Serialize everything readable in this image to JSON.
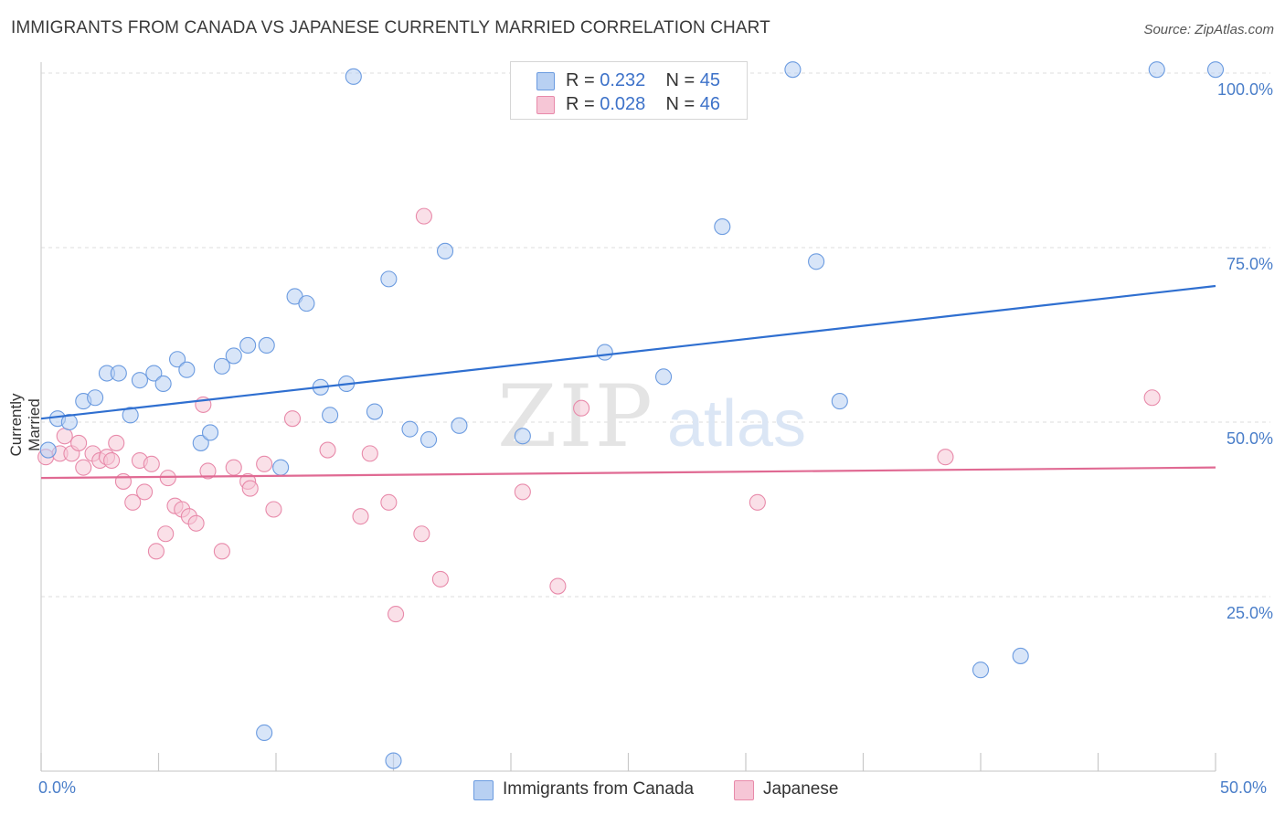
{
  "header": {
    "title": "IMMIGRANTS FROM CANADA VS JAPANESE CURRENTLY MARRIED CORRELATION CHART",
    "source": "Source: ZipAtlas.com"
  },
  "watermark": {
    "zip": "ZIP",
    "atlas": "atlas"
  },
  "legend": {
    "rows": [
      {
        "r_label": "R = ",
        "r_value": "0.232",
        "n_label": "N = ",
        "n_value": "45"
      },
      {
        "r_label": "R = ",
        "r_value": "0.028",
        "n_label": "N = ",
        "n_value": "46"
      }
    ]
  },
  "chart_data": {
    "type": "scatter",
    "title": "IMMIGRANTS FROM CANADA VS JAPANESE CURRENTLY MARRIED CORRELATION CHART",
    "ylabel": "Currently Married",
    "xlabel": "",
    "xlim": [
      0,
      50
    ],
    "ylim": [
      0,
      100
    ],
    "x_tick_labels": [
      "0.0%",
      "50.0%"
    ],
    "y_ticks": [
      25,
      50,
      75,
      100
    ],
    "y_tick_labels": [
      "25.0%",
      "50.0%",
      "75.0%",
      "100.0%"
    ],
    "grid": "horizontal dashed",
    "legend_placement": "top-center",
    "series": [
      {
        "name": "Immigrants from Canada",
        "color": "#6b9be0",
        "fill": "#b8d0f2",
        "trend": {
          "x": [
            0,
            50
          ],
          "y": [
            50.5,
            69.5
          ],
          "color": "#2f6fd0"
        },
        "points": [
          [
            0.3,
            46
          ],
          [
            0.7,
            50.5
          ],
          [
            1.2,
            50
          ],
          [
            1.8,
            53
          ],
          [
            2.3,
            53.5
          ],
          [
            2.8,
            57
          ],
          [
            3.3,
            57
          ],
          [
            3.8,
            51
          ],
          [
            4.2,
            56
          ],
          [
            4.8,
            57
          ],
          [
            5.2,
            55.5
          ],
          [
            5.8,
            59
          ],
          [
            6.2,
            57.5
          ],
          [
            6.8,
            47
          ],
          [
            7.2,
            48.5
          ],
          [
            7.7,
            58
          ],
          [
            8.2,
            59.5
          ],
          [
            8.8,
            61
          ],
          [
            9.6,
            61
          ],
          [
            10.2,
            43.5
          ],
          [
            10.8,
            68
          ],
          [
            11.3,
            67
          ],
          [
            11.9,
            55
          ],
          [
            12.3,
            51
          ],
          [
            13.0,
            55.5
          ],
          [
            13.3,
            99.5
          ],
          [
            14.2,
            51.5
          ],
          [
            14.8,
            70.5
          ],
          [
            15.7,
            49
          ],
          [
            16.5,
            47.5
          ],
          [
            17.2,
            74.5
          ],
          [
            17.8,
            49.5
          ],
          [
            20.5,
            48
          ],
          [
            24.0,
            60
          ],
          [
            26.5,
            56.5
          ],
          [
            29.0,
            78
          ],
          [
            32.0,
            100.5
          ],
          [
            33.0,
            73
          ],
          [
            34.0,
            53
          ],
          [
            40.0,
            14.5
          ],
          [
            41.7,
            16.5
          ],
          [
            47.5,
            100.5
          ],
          [
            50.0,
            100.5
          ],
          [
            9.5,
            5.5
          ],
          [
            15.0,
            1.5
          ]
        ]
      },
      {
        "name": "Japanese",
        "color": "#e88aaa",
        "fill": "#f6c6d6",
        "trend": {
          "x": [
            0,
            50
          ],
          "y": [
            42,
            43.5
          ],
          "color": "#e06a93"
        },
        "points": [
          [
            0.2,
            45
          ],
          [
            0.8,
            45.5
          ],
          [
            1.0,
            48
          ],
          [
            1.3,
            45.5
          ],
          [
            1.6,
            47
          ],
          [
            1.8,
            43.5
          ],
          [
            2.2,
            45.5
          ],
          [
            2.5,
            44.5
          ],
          [
            2.8,
            45
          ],
          [
            3.0,
            44.5
          ],
          [
            3.2,
            47
          ],
          [
            3.5,
            41.5
          ],
          [
            3.9,
            38.5
          ],
          [
            4.2,
            44.5
          ],
          [
            4.4,
            40
          ],
          [
            4.7,
            44
          ],
          [
            4.9,
            31.5
          ],
          [
            5.3,
            34
          ],
          [
            5.4,
            42
          ],
          [
            5.7,
            38
          ],
          [
            6.0,
            37.5
          ],
          [
            6.3,
            36.5
          ],
          [
            6.6,
            35.5
          ],
          [
            6.9,
            52.5
          ],
          [
            7.1,
            43
          ],
          [
            7.7,
            31.5
          ],
          [
            8.2,
            43.5
          ],
          [
            8.8,
            41.5
          ],
          [
            8.9,
            40.5
          ],
          [
            9.5,
            44
          ],
          [
            9.9,
            37.5
          ],
          [
            10.7,
            50.5
          ],
          [
            12.2,
            46
          ],
          [
            13.6,
            36.5
          ],
          [
            14.0,
            45.5
          ],
          [
            14.8,
            38.5
          ],
          [
            15.1,
            22.5
          ],
          [
            16.2,
            34
          ],
          [
            16.3,
            79.5
          ],
          [
            17.0,
            27.5
          ],
          [
            20.5,
            40
          ],
          [
            22.0,
            26.5
          ],
          [
            23.0,
            52
          ],
          [
            30.5,
            38.5
          ],
          [
            38.5,
            45
          ],
          [
            47.3,
            53.5
          ]
        ]
      }
    ]
  }
}
